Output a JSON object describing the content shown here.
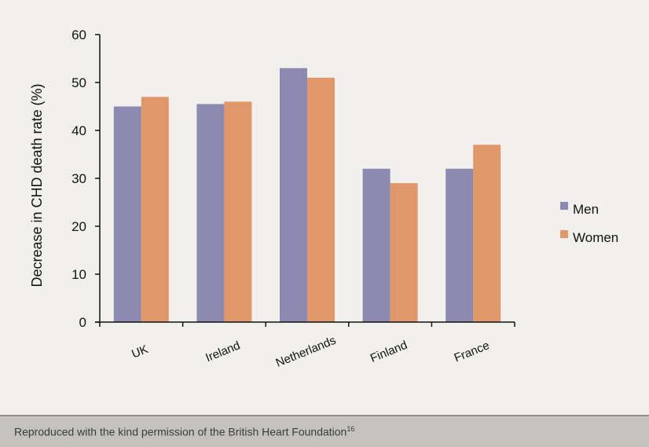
{
  "chart_data": {
    "type": "bar",
    "categories": [
      "UK",
      "Ireland",
      "Netherlands",
      "Finland",
      "France"
    ],
    "series": [
      {
        "name": "Men",
        "values": [
          45,
          45.5,
          53,
          32,
          32
        ],
        "color": "#8b89b0"
      },
      {
        "name": "Women",
        "values": [
          47,
          46,
          51,
          29,
          37
        ],
        "color": "#e0976a"
      }
    ],
    "ylabel": "Decrease in CHD death rate (%)",
    "xlabel": "",
    "ylim": [
      0,
      60
    ],
    "yticks": [
      0,
      10,
      20,
      30,
      40,
      50,
      60
    ],
    "grid": false,
    "legend_position": "right"
  },
  "footer": {
    "text": "Reproduced with the kind permission of the British Heart Foundation",
    "ref": "16"
  }
}
